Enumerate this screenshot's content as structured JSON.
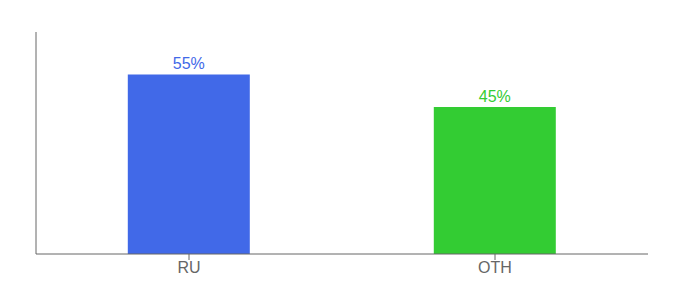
{
  "chart_data": {
    "type": "bar",
    "categories": [
      "RU",
      "OTH"
    ],
    "values": [
      55,
      45
    ],
    "value_labels": [
      "55%",
      "45%"
    ],
    "colors": [
      "#4169e8",
      "#33cc33"
    ],
    "ylim": [
      0,
      68
    ],
    "data_labels": true,
    "tick_labels": "x"
  }
}
